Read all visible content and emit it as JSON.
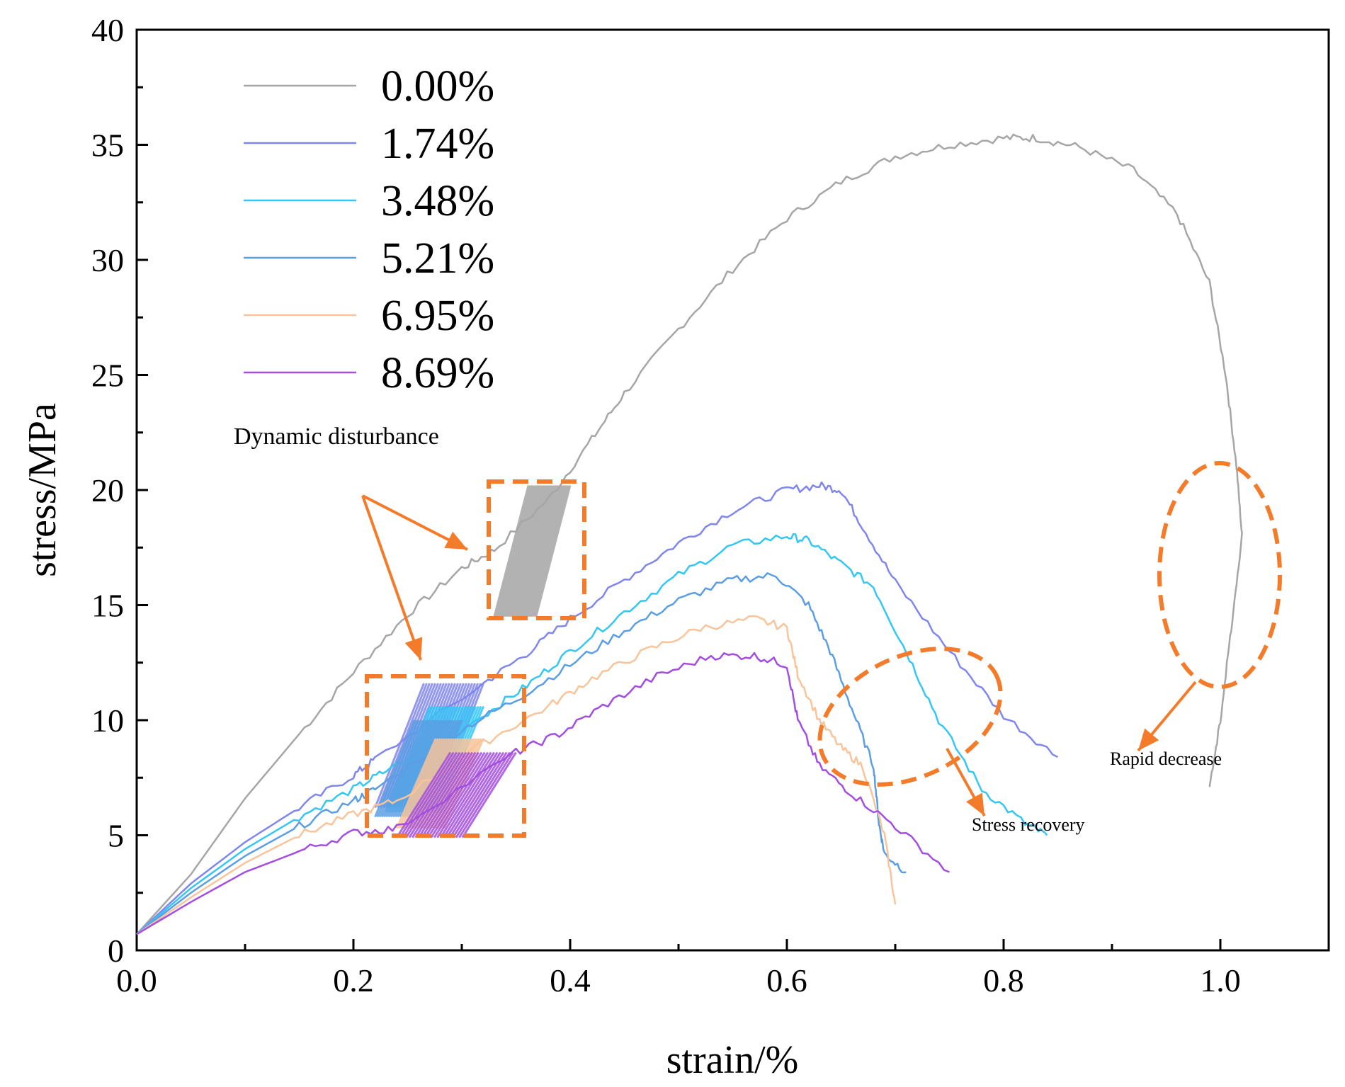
{
  "chart_data": {
    "type": "line",
    "title": "",
    "xlabel": "strain/%",
    "ylabel": "stress/MPa",
    "xlim": [
      0.0,
      1.1
    ],
    "ylim": [
      0,
      40
    ],
    "xticks": [
      "0.0",
      "0.2",
      "0.4",
      "0.6",
      "0.8",
      "1.0"
    ],
    "xtick_values": [
      0.0,
      0.2,
      0.4,
      0.6,
      0.8,
      1.0
    ],
    "yticks": [
      "0",
      "5",
      "10",
      "15",
      "20",
      "25",
      "30",
      "35",
      "40"
    ],
    "ytick_values": [
      0,
      5,
      10,
      15,
      20,
      25,
      30,
      35,
      40
    ],
    "legend_position": "top-left",
    "series": [
      {
        "name": "0.00%",
        "color": "#a6a6a6",
        "points": [
          [
            0.0,
            0.7
          ],
          [
            0.05,
            3.3
          ],
          [
            0.1,
            6.6
          ],
          [
            0.15,
            9.4
          ],
          [
            0.2,
            12.1
          ],
          [
            0.25,
            14.6
          ],
          [
            0.3,
            16.6
          ],
          [
            0.33,
            17.4
          ],
          [
            0.38,
            19.6
          ],
          [
            0.42,
            22.2
          ],
          [
            0.45,
            24.2
          ],
          [
            0.5,
            27.0
          ],
          [
            0.55,
            29.6
          ],
          [
            0.6,
            31.8
          ],
          [
            0.65,
            33.4
          ],
          [
            0.7,
            34.5
          ],
          [
            0.75,
            35.0
          ],
          [
            0.8,
            35.3
          ],
          [
            0.83,
            35.3
          ],
          [
            0.87,
            34.9
          ],
          [
            0.92,
            33.9
          ],
          [
            0.96,
            32.0
          ],
          [
            0.99,
            29.0
          ],
          [
            1.005,
            25.0
          ],
          [
            1.015,
            21.0
          ],
          [
            1.02,
            18.0
          ],
          [
            1.01,
            14.0
          ],
          [
            1.0,
            10.0
          ],
          [
            0.99,
            7.1
          ]
        ],
        "loop_box": {
          "x": [
            0.33,
            0.4
          ],
          "y": [
            14.5,
            20.2
          ]
        }
      },
      {
        "name": "1.74%",
        "color": "#7f86ee",
        "points": [
          [
            0.0,
            0.7
          ],
          [
            0.05,
            2.9
          ],
          [
            0.1,
            4.7
          ],
          [
            0.15,
            6.2
          ],
          [
            0.2,
            7.6
          ],
          [
            0.22,
            8.3
          ],
          [
            0.32,
            11.6
          ],
          [
            0.36,
            12.9
          ],
          [
            0.4,
            14.4
          ],
          [
            0.45,
            16.1
          ],
          [
            0.5,
            17.7
          ],
          [
            0.55,
            19.1
          ],
          [
            0.6,
            20.0
          ],
          [
            0.63,
            20.2
          ],
          [
            0.65,
            20.0
          ],
          [
            0.67,
            18.4
          ],
          [
            0.7,
            16.0
          ],
          [
            0.75,
            13.0
          ],
          [
            0.8,
            10.2
          ],
          [
            0.85,
            8.4
          ]
        ],
        "loop_box": {
          "x": [
            0.22,
            0.32
          ],
          "y": [
            6.2,
            11.6
          ]
        }
      },
      {
        "name": "3.48%",
        "color": "#33c7f5",
        "points": [
          [
            0.0,
            0.7
          ],
          [
            0.05,
            2.7
          ],
          [
            0.1,
            4.4
          ],
          [
            0.15,
            5.8
          ],
          [
            0.2,
            7.0
          ],
          [
            0.23,
            7.8
          ],
          [
            0.32,
            10.2
          ],
          [
            0.36,
            11.5
          ],
          [
            0.4,
            13.0
          ],
          [
            0.45,
            14.7
          ],
          [
            0.5,
            16.3
          ],
          [
            0.55,
            17.6
          ],
          [
            0.6,
            18.0
          ],
          [
            0.62,
            17.8
          ],
          [
            0.65,
            16.8
          ],
          [
            0.68,
            15.8
          ],
          [
            0.71,
            13.0
          ],
          [
            0.74,
            10.0
          ],
          [
            0.78,
            7.0
          ],
          [
            0.82,
            5.5
          ],
          [
            0.84,
            5.0
          ]
        ],
        "loop_box": {
          "x": [
            0.23,
            0.32
          ],
          "y": [
            6.0,
            10.6
          ]
        }
      },
      {
        "name": "5.21%",
        "color": "#5b9ee3",
        "points": [
          [
            0.0,
            0.7
          ],
          [
            0.05,
            2.5
          ],
          [
            0.1,
            4.1
          ],
          [
            0.15,
            5.4
          ],
          [
            0.2,
            6.5
          ],
          [
            0.22,
            7.0
          ],
          [
            0.3,
            9.6
          ],
          [
            0.35,
            10.9
          ],
          [
            0.4,
            12.4
          ],
          [
            0.45,
            13.9
          ],
          [
            0.5,
            15.2
          ],
          [
            0.55,
            16.1
          ],
          [
            0.59,
            16.3
          ],
          [
            0.62,
            15.0
          ],
          [
            0.64,
            13.0
          ],
          [
            0.66,
            10.5
          ],
          [
            0.68,
            8.0
          ],
          [
            0.685,
            5.5
          ],
          [
            0.69,
            4.2
          ],
          [
            0.71,
            3.4
          ]
        ],
        "loop_box": {
          "x": [
            0.22,
            0.3
          ],
          "y": [
            5.8,
            10.0
          ]
        }
      },
      {
        "name": "6.95%",
        "color": "#f9c49a",
        "points": [
          [
            0.0,
            0.7
          ],
          [
            0.05,
            2.3
          ],
          [
            0.1,
            3.8
          ],
          [
            0.15,
            5.0
          ],
          [
            0.2,
            5.9
          ],
          [
            0.24,
            6.5
          ],
          [
            0.32,
            9.0
          ],
          [
            0.38,
            10.6
          ],
          [
            0.42,
            11.8
          ],
          [
            0.47,
            13.0
          ],
          [
            0.52,
            14.0
          ],
          [
            0.57,
            14.4
          ],
          [
            0.6,
            14.0
          ],
          [
            0.61,
            12.0
          ],
          [
            0.63,
            10.0
          ],
          [
            0.65,
            8.8
          ],
          [
            0.67,
            8.0
          ],
          [
            0.69,
            5.0
          ],
          [
            0.7,
            2.0
          ]
        ],
        "loop_box": {
          "x": [
            0.24,
            0.32
          ],
          "y": [
            5.3,
            9.2
          ]
        }
      },
      {
        "name": "8.69%",
        "color": "#a34ee0",
        "points": [
          [
            0.0,
            0.7
          ],
          [
            0.05,
            2.1
          ],
          [
            0.1,
            3.4
          ],
          [
            0.15,
            4.3
          ],
          [
            0.2,
            5.1
          ],
          [
            0.24,
            5.3
          ],
          [
            0.35,
            8.6
          ],
          [
            0.39,
            9.4
          ],
          [
            0.43,
            10.6
          ],
          [
            0.48,
            11.9
          ],
          [
            0.53,
            12.8
          ],
          [
            0.57,
            12.8
          ],
          [
            0.6,
            12.4
          ],
          [
            0.61,
            10.0
          ],
          [
            0.63,
            8.0
          ],
          [
            0.66,
            6.8
          ],
          [
            0.7,
            5.4
          ],
          [
            0.75,
            3.4
          ]
        ],
        "loop_box": {
          "x": [
            0.24,
            0.35
          ],
          "y": [
            4.9,
            8.6
          ]
        }
      }
    ],
    "annotations": {
      "dynamic_disturbance": "Dynamic disturbance",
      "stress_recovery": "Stress recovery",
      "rapid_decrease": "Rapid decrease"
    },
    "highlight_color": "#f47b2a",
    "frame": {
      "xlim": [
        0.0,
        1.1
      ],
      "ylim": [
        0,
        40
      ]
    }
  }
}
